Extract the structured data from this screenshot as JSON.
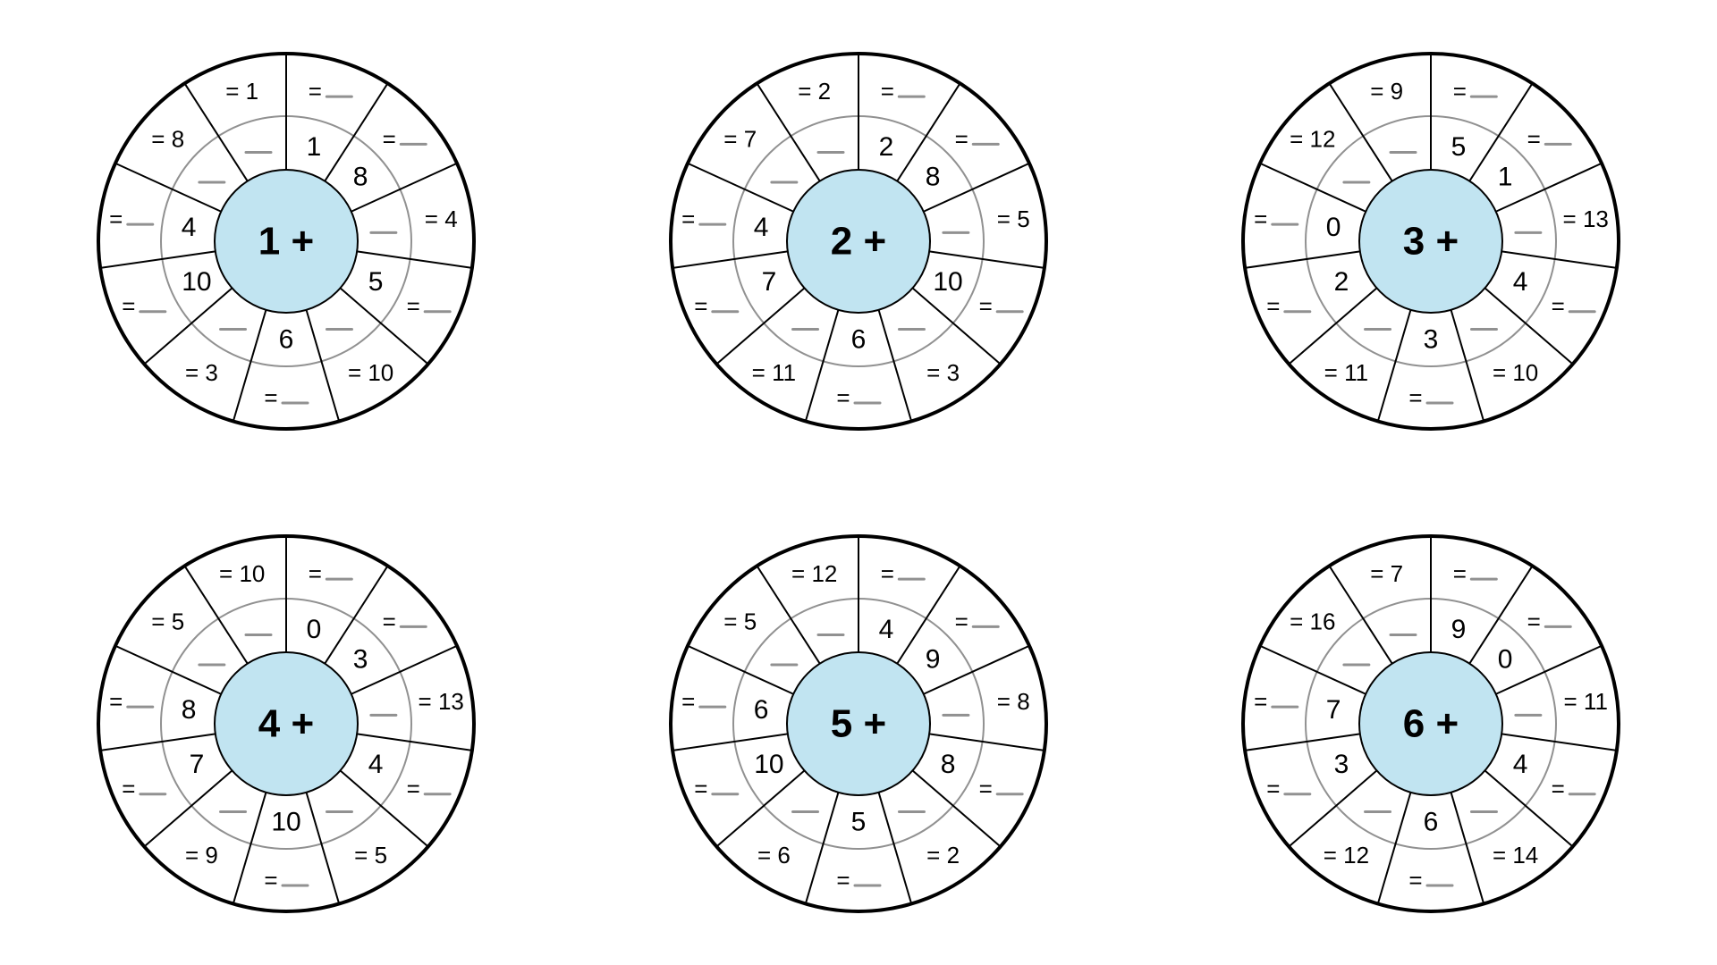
{
  "layout": {
    "svg_size": 440,
    "r_outer": 210,
    "r_mid": 140,
    "r_inner": 80,
    "slices": 10,
    "start_angle_deg": -90,
    "stroke_outer": "#000000",
    "stroke_outer_width": 4,
    "stroke_mid": "#919191",
    "stroke_mid_width": 2,
    "stroke_inner": "#000000",
    "stroke_inner_width": 2,
    "center_fill": "#c1e4f1",
    "blank_underline_color": "#919191",
    "blank_underline_width": 3,
    "blank_underline_len": 28,
    "inner_text_radius": 110,
    "outer_text_radius": 175,
    "font_outer": 26,
    "font_inner": 30,
    "font_center": 44
  },
  "wheels": [
    {
      "center": "1 +",
      "slices": [
        {
          "inner": "1",
          "outer": {
            "kind": "eq_blank"
          }
        },
        {
          "inner": "8",
          "outer": {
            "kind": "eq_blank"
          }
        },
        {
          "inner": "",
          "outer": {
            "kind": "eq_value",
            "value": "4"
          }
        },
        {
          "inner": "5",
          "outer": {
            "kind": "eq_blank"
          }
        },
        {
          "inner": "",
          "outer": {
            "kind": "eq_value",
            "value": "10"
          }
        },
        {
          "inner": "6",
          "outer": {
            "kind": "eq_blank"
          }
        },
        {
          "inner": "",
          "outer": {
            "kind": "eq_value",
            "value": "3"
          }
        },
        {
          "inner": "10",
          "outer": {
            "kind": "eq_blank"
          }
        },
        {
          "inner": "4",
          "outer": {
            "kind": "eq_blank"
          }
        },
        {
          "inner": "",
          "outer": {
            "kind": "eq_value",
            "value": "8"
          }
        },
        {
          "__extra_top__": true,
          "outer": {
            "kind": "eq_value",
            "value": "1"
          }
        }
      ]
    },
    {
      "center": "2 +",
      "slices": [
        {
          "inner": "2",
          "outer": {
            "kind": "eq_blank"
          }
        },
        {
          "inner": "8",
          "outer": {
            "kind": "eq_blank"
          }
        },
        {
          "inner": "",
          "outer": {
            "kind": "eq_value",
            "value": "5"
          }
        },
        {
          "inner": "10",
          "outer": {
            "kind": "eq_blank"
          }
        },
        {
          "inner": "",
          "outer": {
            "kind": "eq_value",
            "value": "3"
          }
        },
        {
          "inner": "6",
          "outer": {
            "kind": "eq_blank"
          }
        },
        {
          "inner": "",
          "outer": {
            "kind": "eq_value",
            "value": "11"
          }
        },
        {
          "inner": "7",
          "outer": {
            "kind": "eq_blank"
          }
        },
        {
          "inner": "4",
          "outer": {
            "kind": "eq_blank"
          }
        },
        {
          "inner": "",
          "outer": {
            "kind": "eq_value",
            "value": "7"
          }
        },
        {
          "__extra_top__": true,
          "outer": {
            "kind": "eq_value",
            "value": "2"
          }
        }
      ]
    },
    {
      "center": "3 +",
      "slices": [
        {
          "inner": "5",
          "outer": {
            "kind": "eq_blank"
          }
        },
        {
          "inner": "1",
          "outer": {
            "kind": "eq_blank"
          }
        },
        {
          "inner": "",
          "outer": {
            "kind": "eq_value",
            "value": "13"
          }
        },
        {
          "inner": "4",
          "outer": {
            "kind": "eq_blank"
          }
        },
        {
          "inner": "",
          "outer": {
            "kind": "eq_value",
            "value": "10"
          }
        },
        {
          "inner": "3",
          "outer": {
            "kind": "eq_blank"
          }
        },
        {
          "inner": "",
          "outer": {
            "kind": "eq_value",
            "value": "11"
          }
        },
        {
          "inner": "2",
          "outer": {
            "kind": "eq_blank"
          }
        },
        {
          "inner": "0",
          "outer": {
            "kind": "eq_blank"
          }
        },
        {
          "inner": "",
          "outer": {
            "kind": "eq_value",
            "value": "12"
          }
        },
        {
          "__extra_top__": true,
          "outer": {
            "kind": "eq_value",
            "value": "9"
          }
        }
      ]
    },
    {
      "center": "4 +",
      "slices": [
        {
          "inner": "0",
          "outer": {
            "kind": "eq_blank"
          }
        },
        {
          "inner": "3",
          "outer": {
            "kind": "eq_blank"
          }
        },
        {
          "inner": "",
          "outer": {
            "kind": "eq_value",
            "value": "13"
          }
        },
        {
          "inner": "4",
          "outer": {
            "kind": "eq_blank"
          }
        },
        {
          "inner": "",
          "outer": {
            "kind": "eq_value",
            "value": "5"
          }
        },
        {
          "inner": "10",
          "outer": {
            "kind": "eq_blank"
          }
        },
        {
          "inner": "",
          "outer": {
            "kind": "eq_value",
            "value": "9"
          }
        },
        {
          "inner": "7",
          "outer": {
            "kind": "eq_blank"
          }
        },
        {
          "inner": "8",
          "outer": {
            "kind": "eq_blank"
          }
        },
        {
          "inner": "",
          "outer": {
            "kind": "eq_value",
            "value": "5"
          }
        },
        {
          "__extra_top__": true,
          "outer": {
            "kind": "eq_value",
            "value": "10"
          }
        }
      ]
    },
    {
      "center": "5 +",
      "slices": [
        {
          "inner": "4",
          "outer": {
            "kind": "eq_blank"
          }
        },
        {
          "inner": "9",
          "outer": {
            "kind": "eq_blank"
          }
        },
        {
          "inner": "",
          "outer": {
            "kind": "eq_value",
            "value": "8"
          }
        },
        {
          "inner": "8",
          "outer": {
            "kind": "eq_blank"
          }
        },
        {
          "inner": "",
          "outer": {
            "kind": "eq_value",
            "value": "2"
          }
        },
        {
          "inner": "5",
          "outer": {
            "kind": "eq_blank"
          }
        },
        {
          "inner": "",
          "outer": {
            "kind": "eq_value",
            "value": "6"
          }
        },
        {
          "inner": "10",
          "outer": {
            "kind": "eq_blank"
          }
        },
        {
          "inner": "6",
          "outer": {
            "kind": "eq_blank"
          }
        },
        {
          "inner": "",
          "outer": {
            "kind": "eq_value",
            "value": "5"
          }
        },
        {
          "__extra_top__": true,
          "outer": {
            "kind": "eq_value",
            "value": "12"
          }
        }
      ]
    },
    {
      "center": "6 +",
      "slices": [
        {
          "inner": "9",
          "outer": {
            "kind": "eq_blank"
          }
        },
        {
          "inner": "0",
          "outer": {
            "kind": "eq_blank"
          }
        },
        {
          "inner": "",
          "outer": {
            "kind": "eq_value",
            "value": "11"
          }
        },
        {
          "inner": "4",
          "outer": {
            "kind": "eq_blank"
          }
        },
        {
          "inner": "",
          "outer": {
            "kind": "eq_value",
            "value": "14"
          }
        },
        {
          "inner": "6",
          "outer": {
            "kind": "eq_blank"
          }
        },
        {
          "inner": "",
          "outer": {
            "kind": "eq_value",
            "value": "12"
          }
        },
        {
          "inner": "3",
          "outer": {
            "kind": "eq_blank"
          }
        },
        {
          "inner": "7",
          "outer": {
            "kind": "eq_blank"
          }
        },
        {
          "inner": "",
          "outer": {
            "kind": "eq_value",
            "value": "16"
          }
        },
        {
          "__extra_top__": true,
          "outer": {
            "kind": "eq_value",
            "value": "7"
          }
        }
      ]
    }
  ]
}
